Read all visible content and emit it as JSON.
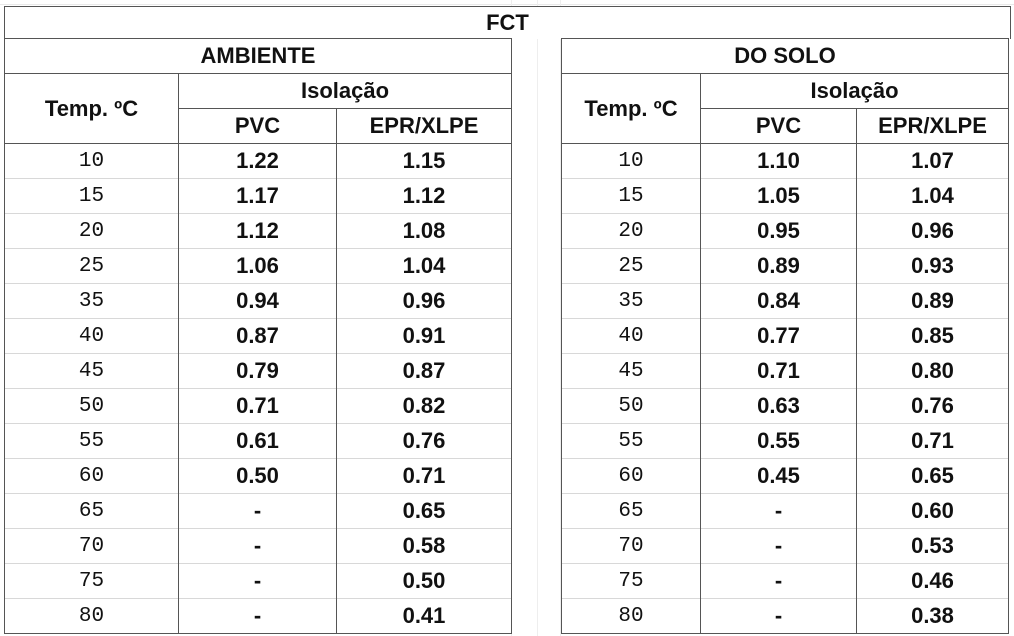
{
  "title": "FCT",
  "sections": [
    {
      "heading": "AMBIENTE",
      "temp_header": "Temp. ºC",
      "isolation_header": "Isolação",
      "col_pvc": "PVC",
      "col_epr": "EPR/XLPE",
      "rows": [
        {
          "temp": "10",
          "pvc": "1.22",
          "epr": "1.15"
        },
        {
          "temp": "15",
          "pvc": "1.17",
          "epr": "1.12"
        },
        {
          "temp": "20",
          "pvc": "1.12",
          "epr": "1.08"
        },
        {
          "temp": "25",
          "pvc": "1.06",
          "epr": "1.04"
        },
        {
          "temp": "35",
          "pvc": "0.94",
          "epr": "0.96"
        },
        {
          "temp": "40",
          "pvc": "0.87",
          "epr": "0.91"
        },
        {
          "temp": "45",
          "pvc": "0.79",
          "epr": "0.87"
        },
        {
          "temp": "50",
          "pvc": "0.71",
          "epr": "0.82"
        },
        {
          "temp": "55",
          "pvc": "0.61",
          "epr": "0.76"
        },
        {
          "temp": "60",
          "pvc": "0.50",
          "epr": "0.71"
        },
        {
          "temp": "65",
          "pvc": "-",
          "epr": "0.65"
        },
        {
          "temp": "70",
          "pvc": "-",
          "epr": "0.58"
        },
        {
          "temp": "75",
          "pvc": "-",
          "epr": "0.50"
        },
        {
          "temp": "80",
          "pvc": "-",
          "epr": "0.41"
        }
      ]
    },
    {
      "heading": "DO SOLO",
      "temp_header": "Temp. ºC",
      "isolation_header": "Isolação",
      "col_pvc": "PVC",
      "col_epr": "EPR/XLPE",
      "rows": [
        {
          "temp": "10",
          "pvc": "1.10",
          "epr": "1.07"
        },
        {
          "temp": "15",
          "pvc": "1.05",
          "epr": "1.04"
        },
        {
          "temp": "20",
          "pvc": "0.95",
          "epr": "0.96"
        },
        {
          "temp": "25",
          "pvc": "0.89",
          "epr": "0.93"
        },
        {
          "temp": "35",
          "pvc": "0.84",
          "epr": "0.89"
        },
        {
          "temp": "40",
          "pvc": "0.77",
          "epr": "0.85"
        },
        {
          "temp": "45",
          "pvc": "0.71",
          "epr": "0.80"
        },
        {
          "temp": "50",
          "pvc": "0.63",
          "epr": "0.76"
        },
        {
          "temp": "55",
          "pvc": "0.55",
          "epr": "0.71"
        },
        {
          "temp": "60",
          "pvc": "0.45",
          "epr": "0.65"
        },
        {
          "temp": "65",
          "pvc": "-",
          "epr": "0.60"
        },
        {
          "temp": "70",
          "pvc": "-",
          "epr": "0.53"
        },
        {
          "temp": "75",
          "pvc": "-",
          "epr": "0.46"
        },
        {
          "temp": "80",
          "pvc": "-",
          "epr": "0.38"
        }
      ]
    }
  ]
}
